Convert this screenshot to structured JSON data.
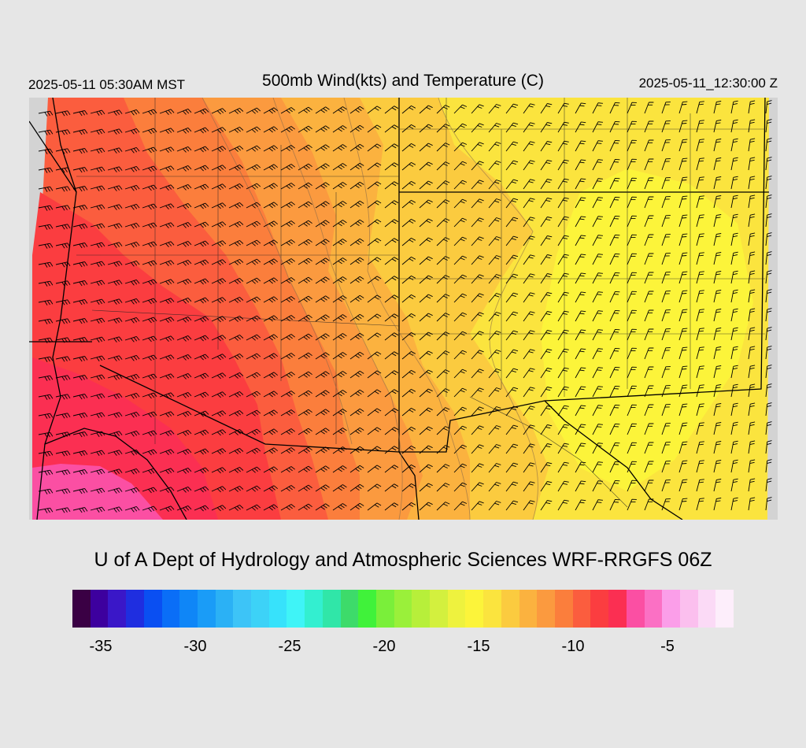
{
  "header": {
    "local_time": "2025-05-11 05:30AM MST",
    "title": "500mb Wind(kts) and Temperature (C)",
    "valid_time": "2025-05-11_12:30:00 Z"
  },
  "credit": "U of A Dept of Hydrology and Atmospheric Sciences WRF-RRGFS 06Z",
  "colorbar": {
    "colors": [
      "#3a0044",
      "#3d009e",
      "#3a17c8",
      "#1f2ee0",
      "#0a4ff2",
      "#0a6ef7",
      "#0f86f7",
      "#1a9cf7",
      "#2bb1f5",
      "#3dc4f7",
      "#3dd2f7",
      "#37e2fb",
      "#3ff4f7",
      "#33efd0",
      "#30e6a8",
      "#3ddb6a",
      "#40f23a",
      "#7aef3a",
      "#9af03a",
      "#b7ef3a",
      "#d3f03e",
      "#eef23e",
      "#fcf43a",
      "#fbe43e",
      "#fbcb3f",
      "#fbb23f",
      "#fb9a3f",
      "#fb7e3c",
      "#fb5d3e",
      "#fb3d40",
      "#fb2f52",
      "#fb4fa3",
      "#fb70c4",
      "#fb9ee9",
      "#fbbfee",
      "#fbdaf6",
      "#fdeefb"
    ],
    "tick_labels": [
      "-35",
      "-30",
      "-25",
      "-20",
      "-15",
      "-10",
      "-5"
    ],
    "tick_values": [
      -35,
      -30,
      -25,
      -20,
      -15,
      -10,
      -5
    ],
    "range": [
      -36.5,
      -1.5
    ]
  },
  "map": {
    "region": "Southwest United States and northern Mexico",
    "field_colors": {
      "no_data": "#d3d3d3",
      "magenta_-7": "#fb4fa3",
      "crimson_-8": "#fb2f52",
      "red_-9": "#fb3d40",
      "redorange_-10": "#fb5d3e",
      "orange_-11": "#fb7e3c",
      "amber_-12": "#fb9a3f",
      "gold_-13": "#fbb23f",
      "lightgold_-14": "#fbcb3f",
      "yellow_-15": "#fbe43e",
      "brightyellow_-16": "#fcf43a"
    }
  }
}
